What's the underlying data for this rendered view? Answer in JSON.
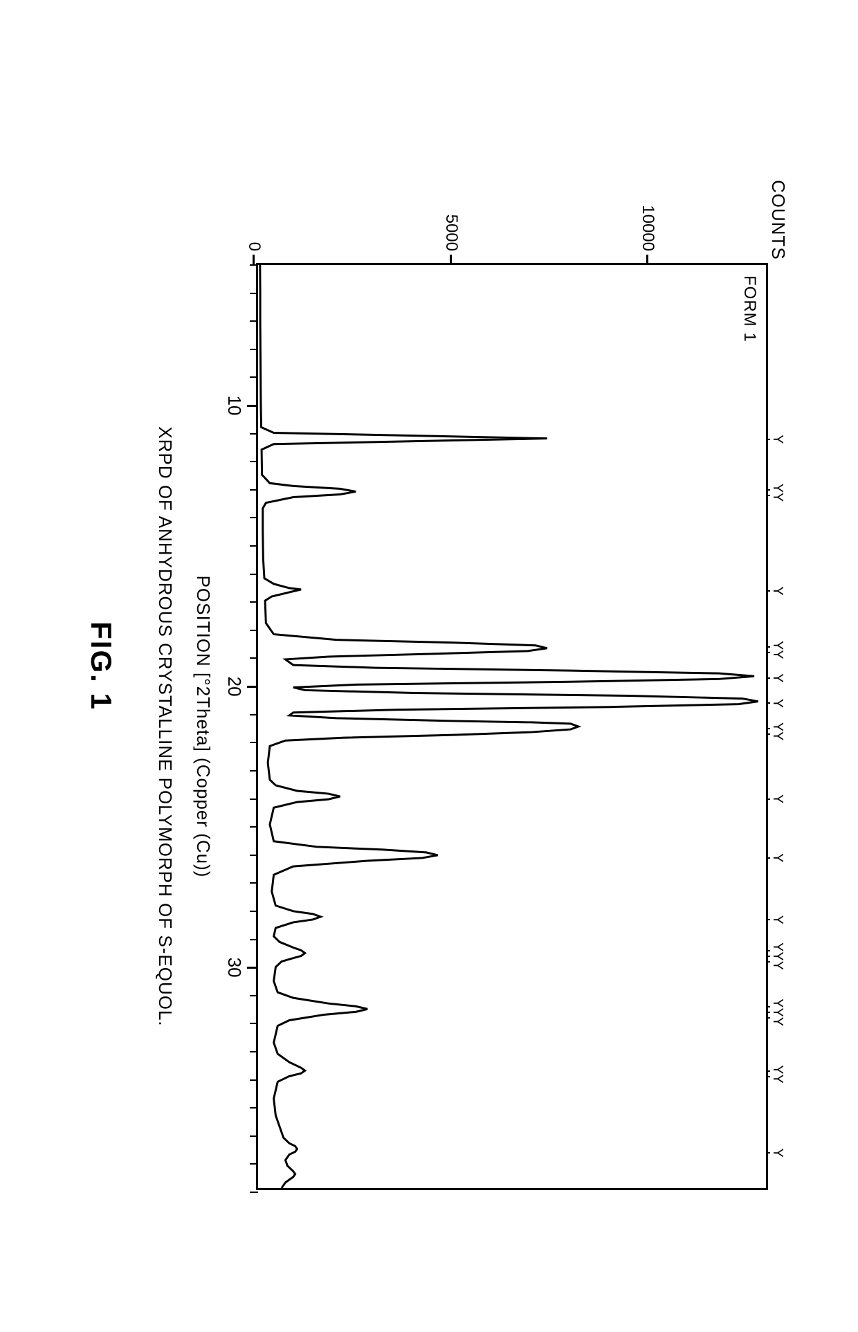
{
  "figure": {
    "label": "FIG. 1",
    "caption": "XRPD OF ANHYDROUS CRYSTALLINE POLYMORPH OF S-EQUOL.",
    "series_label": "FORM 1",
    "chart_type": "line",
    "background_color": "#ffffff",
    "line_color": "#000000",
    "line_width": 3,
    "border_color": "#000000",
    "y_axis": {
      "label": "COUNTS",
      "min": 0,
      "max": 13000,
      "ticks": [
        0,
        5000,
        10000
      ],
      "fontsize": 24
    },
    "x_axis": {
      "label": "POSITION [°2Theta] (Copper (Cu))",
      "min": 5,
      "max": 38,
      "major_ticks": [
        10,
        20,
        30
      ],
      "minor_step": 1,
      "fontsize": 26
    },
    "peak_markers": [
      {
        "x": 11.2,
        "glyph": "Y"
      },
      {
        "x": 13.1,
        "glyph": "YY"
      },
      {
        "x": 16.6,
        "glyph": "Y"
      },
      {
        "x": 18.7,
        "glyph": "YY"
      },
      {
        "x": 19.7,
        "glyph": "Y"
      },
      {
        "x": 20.6,
        "glyph": "Y"
      },
      {
        "x": 21.6,
        "glyph": "YY"
      },
      {
        "x": 24.0,
        "glyph": "Y"
      },
      {
        "x": 26.1,
        "glyph": "Y"
      },
      {
        "x": 28.3,
        "glyph": "Y"
      },
      {
        "x": 29.6,
        "glyph": "YYY"
      },
      {
        "x": 31.6,
        "glyph": "YYY"
      },
      {
        "x": 33.8,
        "glyph": "YY"
      },
      {
        "x": 36.6,
        "glyph": "Y"
      }
    ],
    "xrpd_points": [
      [
        5.0,
        50
      ],
      [
        6.0,
        55
      ],
      [
        7.0,
        55
      ],
      [
        8.0,
        60
      ],
      [
        9.0,
        65
      ],
      [
        10.0,
        70
      ],
      [
        10.8,
        80
      ],
      [
        11.0,
        400
      ],
      [
        11.1,
        4000
      ],
      [
        11.2,
        7400
      ],
      [
        11.3,
        4000
      ],
      [
        11.4,
        400
      ],
      [
        11.6,
        90
      ],
      [
        12.5,
        100
      ],
      [
        12.8,
        300
      ],
      [
        12.9,
        900
      ],
      [
        13.0,
        2100
      ],
      [
        13.1,
        2500
      ],
      [
        13.2,
        2100
      ],
      [
        13.3,
        900
      ],
      [
        13.5,
        200
      ],
      [
        13.7,
        120
      ],
      [
        14.5,
        120
      ],
      [
        15.5,
        130
      ],
      [
        16.2,
        160
      ],
      [
        16.4,
        400
      ],
      [
        16.55,
        800
      ],
      [
        16.6,
        1100
      ],
      [
        16.7,
        800
      ],
      [
        16.85,
        350
      ],
      [
        17.0,
        180
      ],
      [
        17.8,
        200
      ],
      [
        18.2,
        400
      ],
      [
        18.4,
        2000
      ],
      [
        18.5,
        5000
      ],
      [
        18.6,
        7100
      ],
      [
        18.7,
        7400
      ],
      [
        18.8,
        6900
      ],
      [
        18.9,
        4500
      ],
      [
        19.0,
        1800
      ],
      [
        19.1,
        700
      ],
      [
        19.3,
        900
      ],
      [
        19.4,
        3000
      ],
      [
        19.5,
        8000
      ],
      [
        19.6,
        11800
      ],
      [
        19.7,
        12700
      ],
      [
        19.8,
        11800
      ],
      [
        19.9,
        8000
      ],
      [
        20.0,
        2500
      ],
      [
        20.1,
        900
      ],
      [
        20.2,
        1200
      ],
      [
        20.3,
        4000
      ],
      [
        20.4,
        9500
      ],
      [
        20.5,
        12400
      ],
      [
        20.6,
        12800
      ],
      [
        20.7,
        12300
      ],
      [
        20.8,
        9000
      ],
      [
        20.9,
        3500
      ],
      [
        21.0,
        900
      ],
      [
        21.1,
        800
      ],
      [
        21.2,
        2000
      ],
      [
        21.3,
        5000
      ],
      [
        21.35,
        7000
      ],
      [
        21.4,
        8000
      ],
      [
        21.5,
        8200
      ],
      [
        21.6,
        8000
      ],
      [
        21.7,
        7000
      ],
      [
        21.8,
        5000
      ],
      [
        21.9,
        2200
      ],
      [
        22.0,
        700
      ],
      [
        22.2,
        300
      ],
      [
        22.8,
        250
      ],
      [
        23.4,
        300
      ],
      [
        23.6,
        450
      ],
      [
        23.8,
        1000
      ],
      [
        23.9,
        1800
      ],
      [
        24.0,
        2100
      ],
      [
        24.1,
        1800
      ],
      [
        24.2,
        1000
      ],
      [
        24.4,
        400
      ],
      [
        25.0,
        300
      ],
      [
        25.6,
        400
      ],
      [
        25.8,
        1500
      ],
      [
        25.9,
        3200
      ],
      [
        26.0,
        4300
      ],
      [
        26.1,
        4600
      ],
      [
        26.2,
        4200
      ],
      [
        26.3,
        2800
      ],
      [
        26.5,
        900
      ],
      [
        26.8,
        400
      ],
      [
        27.4,
        350
      ],
      [
        27.9,
        450
      ],
      [
        28.1,
        900
      ],
      [
        28.2,
        1400
      ],
      [
        28.3,
        1600
      ],
      [
        28.4,
        1400
      ],
      [
        28.5,
        900
      ],
      [
        28.7,
        450
      ],
      [
        29.0,
        400
      ],
      [
        29.2,
        550
      ],
      [
        29.4,
        900
      ],
      [
        29.5,
        1100
      ],
      [
        29.6,
        1200
      ],
      [
        29.7,
        1100
      ],
      [
        29.8,
        850
      ],
      [
        29.9,
        600
      ],
      [
        30.1,
        450
      ],
      [
        30.6,
        400
      ],
      [
        31.0,
        500
      ],
      [
        31.2,
        900
      ],
      [
        31.4,
        1800
      ],
      [
        31.5,
        2500
      ],
      [
        31.6,
        2800
      ],
      [
        31.7,
        2500
      ],
      [
        31.8,
        1700
      ],
      [
        32.0,
        800
      ],
      [
        32.2,
        500
      ],
      [
        32.8,
        400
      ],
      [
        33.2,
        500
      ],
      [
        33.5,
        800
      ],
      [
        33.7,
        1100
      ],
      [
        33.8,
        1200
      ],
      [
        33.9,
        1100
      ],
      [
        34.0,
        800
      ],
      [
        34.2,
        500
      ],
      [
        34.8,
        400
      ],
      [
        35.4,
        450
      ],
      [
        35.8,
        550
      ],
      [
        36.2,
        650
      ],
      [
        36.4,
        800
      ],
      [
        36.5,
        950
      ],
      [
        36.6,
        1000
      ],
      [
        36.7,
        950
      ],
      [
        36.8,
        800
      ],
      [
        37.0,
        700
      ],
      [
        37.2,
        750
      ],
      [
        37.4,
        900
      ],
      [
        37.5,
        950
      ],
      [
        37.6,
        900
      ],
      [
        37.8,
        700
      ],
      [
        38.0,
        600
      ]
    ]
  }
}
